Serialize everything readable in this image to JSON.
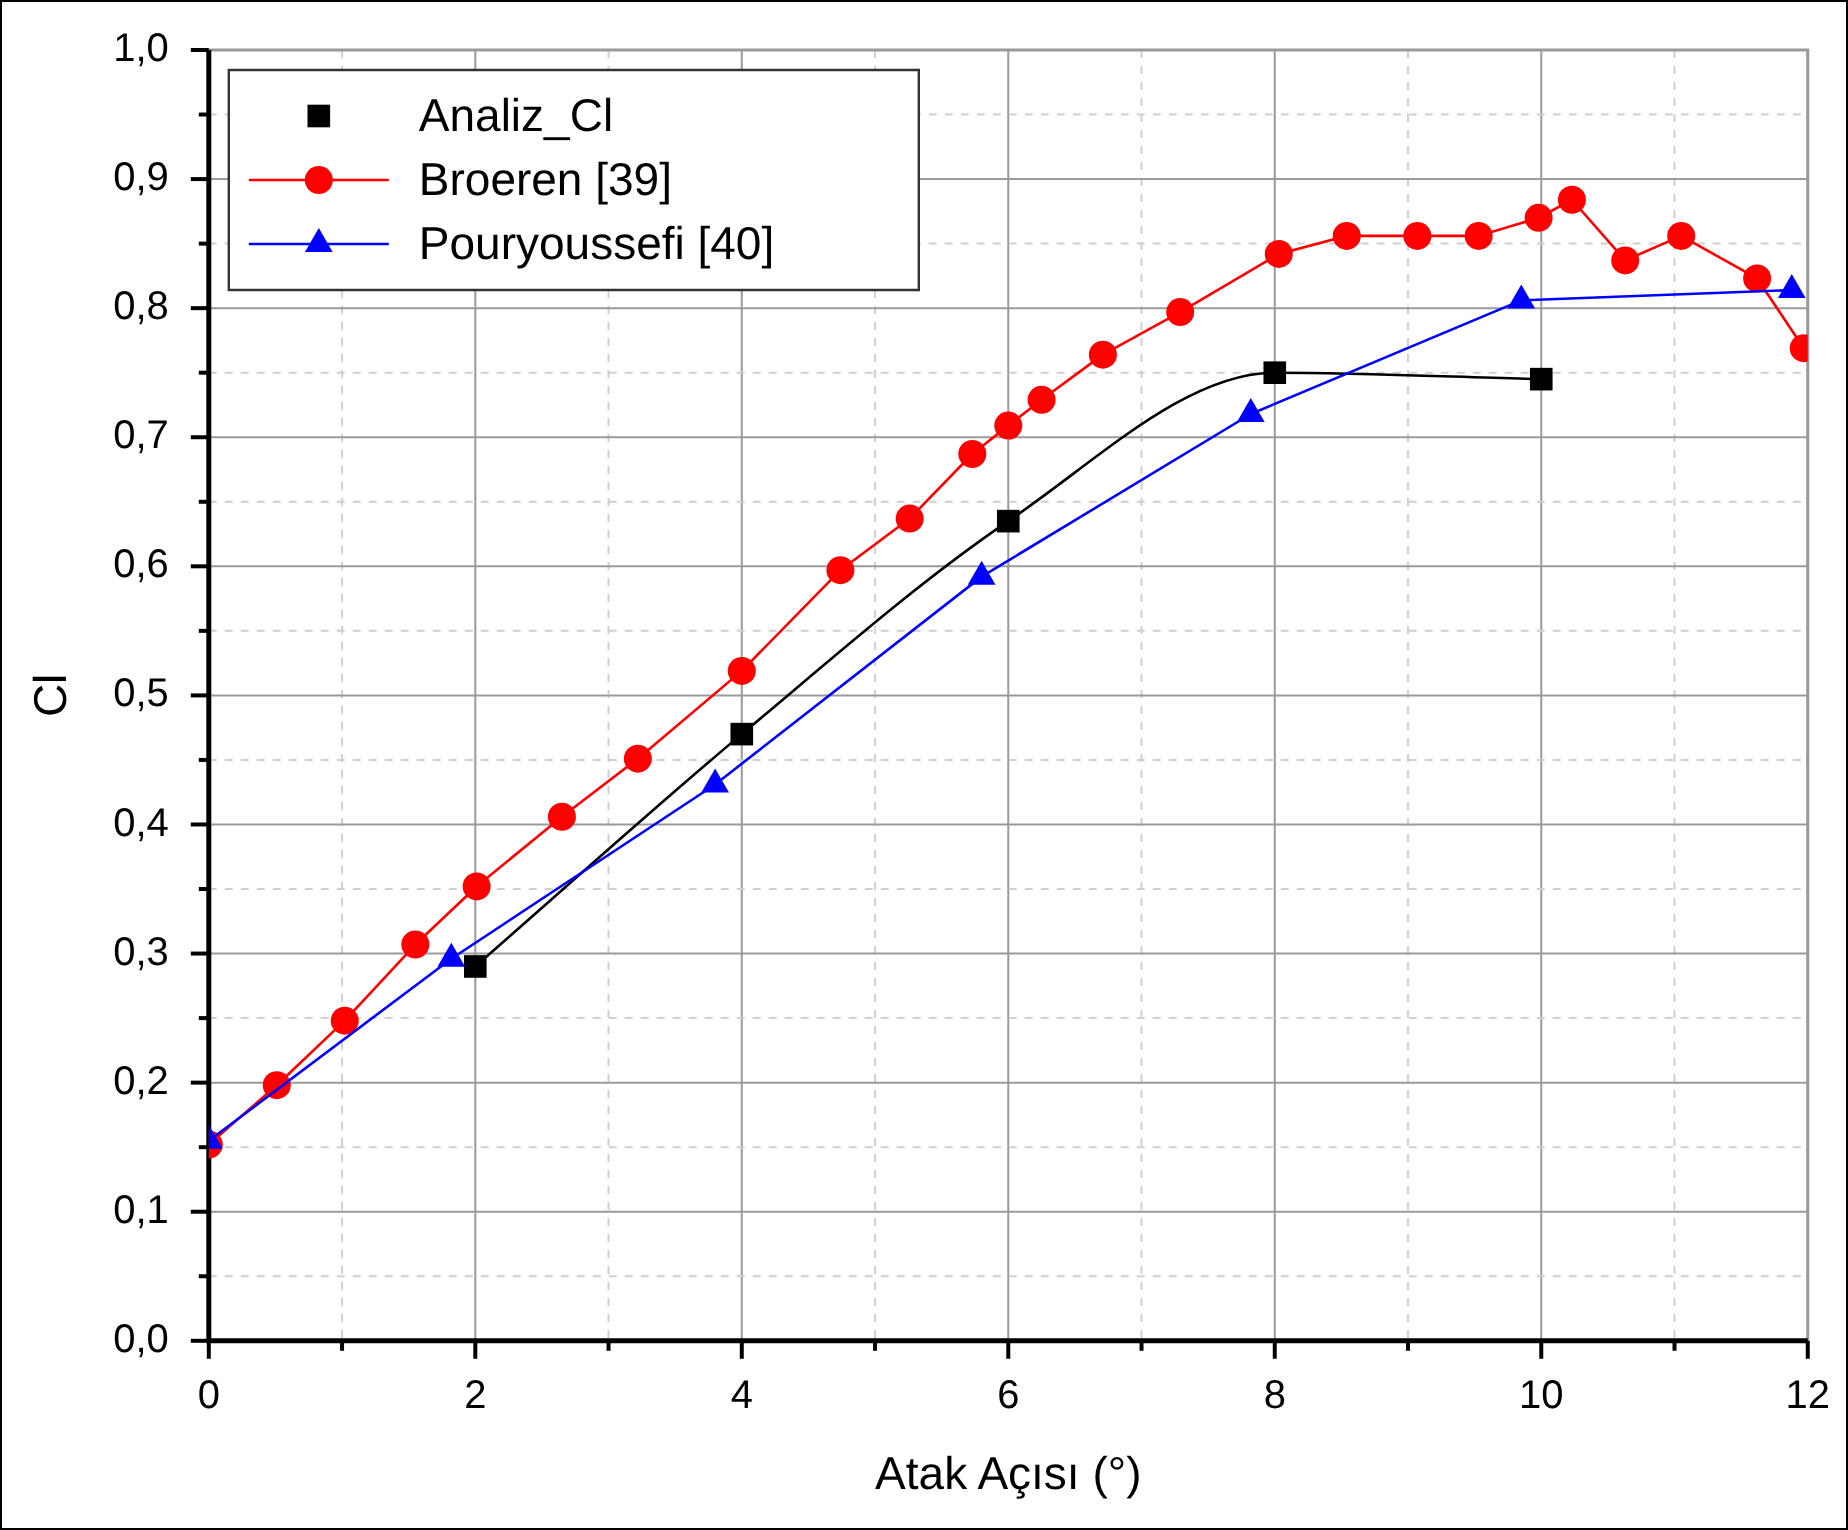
{
  "chart_data": {
    "type": "line",
    "xlabel": "Atak Açısı (°)",
    "ylabel": "Cl",
    "xlim": [
      0,
      12
    ],
    "ylim": [
      0,
      1
    ],
    "xticks": [
      0,
      {
        "value": 1,
        "label": null
      },
      2,
      {
        "value": 3,
        "label": null
      },
      4,
      {
        "value": 5,
        "label": null
      },
      6,
      {
        "value": 7,
        "label": null
      },
      8,
      {
        "value": 9,
        "label": null
      },
      10,
      {
        "value": 11,
        "label": null
      },
      12
    ],
    "yticks": [
      {
        "value": 0,
        "label": "0,0"
      },
      {
        "value": 0.05,
        "label": null
      },
      {
        "value": 0.1,
        "label": "0,1"
      },
      {
        "value": 0.15,
        "label": null
      },
      {
        "value": 0.2,
        "label": "0,2"
      },
      {
        "value": 0.25,
        "label": null
      },
      {
        "value": 0.3,
        "label": "0,3"
      },
      {
        "value": 0.35,
        "label": null
      },
      {
        "value": 0.4,
        "label": "0,4"
      },
      {
        "value": 0.45,
        "label": null
      },
      {
        "value": 0.5,
        "label": "0,5"
      },
      {
        "value": 0.55,
        "label": null
      },
      {
        "value": 0.6,
        "label": "0,6"
      },
      {
        "value": 0.65,
        "label": null
      },
      {
        "value": 0.7,
        "label": "0,7"
      },
      {
        "value": 0.75,
        "label": null
      },
      {
        "value": 0.8,
        "label": "0,8"
      },
      {
        "value": 0.85,
        "label": null
      },
      {
        "value": 0.9,
        "label": "0,9"
      },
      {
        "value": 0.95,
        "label": null
      },
      {
        "value": 1,
        "label": "1,0"
      }
    ],
    "grid": true,
    "legend": "top left",
    "line_style": "solid",
    "series": [
      {
        "name": "Analiz_Cl",
        "color": "#000000",
        "marker": "square",
        "x": [
          2,
          4,
          6,
          8,
          10
        ],
        "values": [
          0.29,
          0.47,
          0.635,
          0.75,
          0.745
        ]
      },
      {
        "name": "Broeren [39]",
        "color": "#ff0000",
        "marker": "circle",
        "x": [
          0,
          0.51,
          1.02,
          1.55,
          2.01,
          2.65,
          3.22,
          4.0,
          4.74,
          5.26,
          5.73,
          6.0,
          6.25,
          6.71,
          7.29,
          8.03,
          8.54,
          9.07,
          9.53,
          9.98,
          10.23,
          10.63,
          11.05,
          11.62,
          11.97
        ],
        "values": [
          0.152,
          0.198,
          0.248,
          0.307,
          0.352,
          0.406,
          0.451,
          0.519,
          0.597,
          0.637,
          0.687,
          0.709,
          0.729,
          0.764,
          0.797,
          0.842,
          0.856,
          0.856,
          0.856,
          0.87,
          0.884,
          0.837,
          0.856,
          0.823,
          0.769
        ]
      },
      {
        "name": "Pouryoussefi [40]",
        "color": "#0000ff",
        "marker": "triangle",
        "x": [
          0,
          1.82,
          3.8,
          5.8,
          7.82,
          9.85,
          11.88
        ],
        "values": [
          0.155,
          0.296,
          0.431,
          0.592,
          0.718,
          0.806,
          0.814
        ]
      }
    ]
  }
}
